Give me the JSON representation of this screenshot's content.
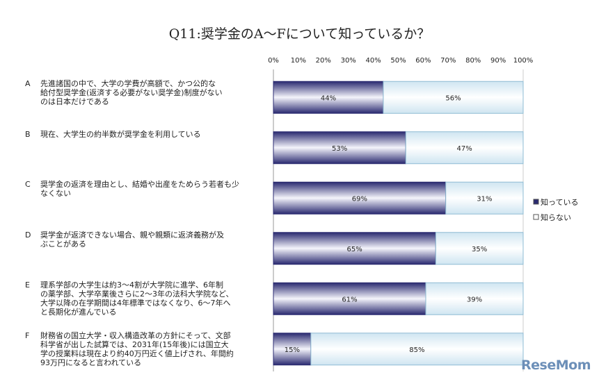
{
  "title": "Q11:奨学金のA～Fについて知っているか？",
  "logo_text": "ReseMom",
  "chart_data": {
    "type": "bar",
    "orientation": "horizontal",
    "stacked": "percent",
    "title": "Q11:奨学金のA～Fについて知っているか？",
    "x_ticks": [
      "0%",
      "10%",
      "20%",
      "30%",
      "40%",
      "50%",
      "60%",
      "70%",
      "80%",
      "90%",
      "100%"
    ],
    "xlim": [
      0,
      100
    ],
    "legend_position": "right",
    "categories": [
      {
        "letter": "A",
        "text": "先進諸国の中で、大学の学費が高額で、かつ公的な\n給付型奨学金(返済する必要がない奨学金)制度がない\nのは日本だけである"
      },
      {
        "letter": "B",
        "text": "現在、大学生の約半数が奨学金を利用している"
      },
      {
        "letter": "C",
        "text": "奨学金の返済を理由とし、結婚や出産をためらう若者も少\nなくない"
      },
      {
        "letter": "D",
        "text": "奨学金が返済できない場合、親や親類に返済義務が及\nぶことがある"
      },
      {
        "letter": "E",
        "text": "理系学部の大学生は約3～4割が大学院に進学、6年制\nの薬学部、大学卒業後さらに2～3年の法科大学院など、\n大学以降の在学期間は4年標準ではなくなり、6～7年へ\nと長期化が進んでいる"
      },
      {
        "letter": "F",
        "text": "財務省の国立大学・収入構造改革の方針にそって、文部\n科学省が出した試算では、2031年(15年後)には国立大\n学の授業料は現在より約40万円近く値上げされ、年間約\n93万円になると言われている"
      }
    ],
    "series": [
      {
        "name": "知っている",
        "values": [
          44,
          53,
          69,
          65,
          61,
          15
        ],
        "labels": [
          "44%",
          "53%",
          "69%",
          "65%",
          "61%",
          "15%"
        ],
        "color": "#2e2e78"
      },
      {
        "name": "知らない",
        "values": [
          56,
          47,
          31,
          35,
          39,
          85
        ],
        "labels": [
          "56%",
          "47%",
          "31%",
          "35%",
          "39%",
          "85%"
        ],
        "color": "#e4f1f8"
      }
    ],
    "grid": true
  }
}
